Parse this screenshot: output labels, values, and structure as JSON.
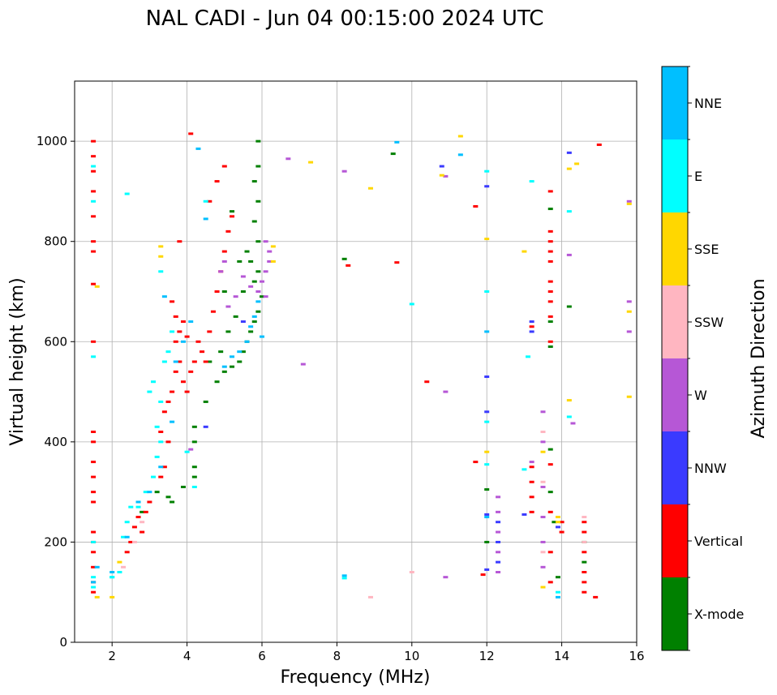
{
  "chart_data": {
    "type": "scatter",
    "title": "NAL CADI - Jun 04 00:15:00 2024 UTC",
    "xlabel": "Frequency (MHz)",
    "ylabel": "Virtual height (km)",
    "xlim": [
      1,
      16
    ],
    "ylim": [
      0,
      1120
    ],
    "xticks": [
      2,
      4,
      6,
      8,
      10,
      12,
      14,
      16
    ],
    "yticks": [
      0,
      200,
      400,
      600,
      800,
      1000
    ],
    "grid": true,
    "colorbar": {
      "title": "Azimuth Direction",
      "categories": [
        {
          "name": "X-mode",
          "color": "#008000"
        },
        {
          "name": "Vertical",
          "color": "#ff0000"
        },
        {
          "name": "NNW",
          "color": "#3a3aff"
        },
        {
          "name": "W",
          "color": "#b657d6"
        },
        {
          "name": "SSW",
          "color": "#ffb6c1"
        },
        {
          "name": "SSE",
          "color": "#ffd700"
        },
        {
          "name": "E",
          "color": "#00ffff"
        },
        {
          "name": "NNE",
          "color": "#00bfff"
        }
      ]
    },
    "series": [
      {
        "name": "X-mode",
        "points": [
          [
            2.8,
            260
          ],
          [
            3.2,
            300
          ],
          [
            3.5,
            290
          ],
          [
            3.6,
            280
          ],
          [
            3.9,
            310
          ],
          [
            4.2,
            330
          ],
          [
            4.2,
            350
          ],
          [
            4.2,
            400
          ],
          [
            4.2,
            430
          ],
          [
            4.5,
            480
          ],
          [
            4.8,
            520
          ],
          [
            5.0,
            540
          ],
          [
            5.2,
            550
          ],
          [
            5.4,
            560
          ],
          [
            5.5,
            580
          ],
          [
            5.6,
            600
          ],
          [
            5.7,
            620
          ],
          [
            5.8,
            640
          ],
          [
            5.9,
            660
          ],
          [
            6.0,
            690
          ],
          [
            5.8,
            720
          ],
          [
            5.9,
            740
          ],
          [
            5.7,
            760
          ],
          [
            5.6,
            780
          ],
          [
            5.9,
            800
          ],
          [
            5.8,
            840
          ],
          [
            5.9,
            880
          ],
          [
            5.8,
            920
          ],
          [
            5.9,
            950
          ],
          [
            5.9,
            1000
          ],
          [
            5.2,
            860
          ],
          [
            5.0,
            700
          ],
          [
            5.3,
            650
          ],
          [
            5.1,
            620
          ],
          [
            5.5,
            700
          ],
          [
            5.4,
            760
          ],
          [
            4.9,
            580
          ],
          [
            4.6,
            560
          ],
          [
            12.0,
            200
          ],
          [
            12.0,
            305
          ],
          [
            13.7,
            300
          ],
          [
            13.7,
            385
          ],
          [
            13.7,
            590
          ],
          [
            13.7,
            640
          ],
          [
            13.7,
            865
          ],
          [
            14.2,
            670
          ],
          [
            14.6,
            160
          ],
          [
            14.6,
            200
          ],
          [
            9.5,
            975
          ],
          [
            8.2,
            765
          ],
          [
            13.9,
            130
          ],
          [
            13.8,
            240
          ]
        ]
      },
      {
        "name": "Vertical",
        "points": [
          [
            1.5,
            100
          ],
          [
            1.5,
            120
          ],
          [
            1.5,
            150
          ],
          [
            1.5,
            180
          ],
          [
            1.5,
            200
          ],
          [
            1.5,
            220
          ],
          [
            1.5,
            280
          ],
          [
            1.5,
            300
          ],
          [
            1.5,
            330
          ],
          [
            1.5,
            360
          ],
          [
            1.5,
            400
          ],
          [
            1.5,
            420
          ],
          [
            1.5,
            600
          ],
          [
            1.5,
            715
          ],
          [
            1.5,
            780
          ],
          [
            1.5,
            800
          ],
          [
            1.5,
            850
          ],
          [
            1.5,
            900
          ],
          [
            1.5,
            940
          ],
          [
            1.5,
            970
          ],
          [
            1.5,
            1000
          ],
          [
            2.4,
            180
          ],
          [
            2.5,
            200
          ],
          [
            2.6,
            230
          ],
          [
            2.7,
            250
          ],
          [
            2.8,
            220
          ],
          [
            2.9,
            260
          ],
          [
            3.0,
            280
          ],
          [
            3.3,
            330
          ],
          [
            3.4,
            350
          ],
          [
            3.5,
            400
          ],
          [
            3.3,
            420
          ],
          [
            3.4,
            460
          ],
          [
            3.5,
            480
          ],
          [
            3.6,
            500
          ],
          [
            3.7,
            540
          ],
          [
            3.8,
            560
          ],
          [
            3.9,
            520
          ],
          [
            4.0,
            500
          ],
          [
            4.1,
            540
          ],
          [
            4.2,
            560
          ],
          [
            3.7,
            600
          ],
          [
            3.8,
            620
          ],
          [
            3.9,
            640
          ],
          [
            4.0,
            610
          ],
          [
            3.6,
            680
          ],
          [
            3.7,
            650
          ],
          [
            4.3,
            600
          ],
          [
            4.4,
            580
          ],
          [
            4.5,
            560
          ],
          [
            4.6,
            620
          ],
          [
            4.7,
            660
          ],
          [
            4.8,
            700
          ],
          [
            4.9,
            740
          ],
          [
            5.0,
            780
          ],
          [
            5.1,
            820
          ],
          [
            5.2,
            850
          ],
          [
            4.6,
            880
          ],
          [
            4.8,
            920
          ],
          [
            5.0,
            950
          ],
          [
            3.8,
            800
          ],
          [
            4.1,
            1015
          ],
          [
            10.4,
            520
          ],
          [
            11.9,
            135
          ],
          [
            11.7,
            360
          ],
          [
            11.7,
            870
          ],
          [
            13.2,
            260
          ],
          [
            13.2,
            290
          ],
          [
            13.2,
            320
          ],
          [
            13.2,
            350
          ],
          [
            13.2,
            630
          ],
          [
            13.7,
            120
          ],
          [
            13.7,
            180
          ],
          [
            13.7,
            260
          ],
          [
            13.7,
            355
          ],
          [
            13.7,
            600
          ],
          [
            13.7,
            650
          ],
          [
            13.7,
            680
          ],
          [
            13.7,
            700
          ],
          [
            13.7,
            720
          ],
          [
            13.7,
            760
          ],
          [
            13.7,
            780
          ],
          [
            13.7,
            800
          ],
          [
            13.7,
            820
          ],
          [
            13.7,
            900
          ],
          [
            14.0,
            220
          ],
          [
            14.0,
            240
          ],
          [
            14.6,
            100
          ],
          [
            14.6,
            120
          ],
          [
            14.6,
            140
          ],
          [
            14.6,
            180
          ],
          [
            14.6,
            220
          ],
          [
            14.6,
            240
          ],
          [
            14.9,
            90
          ],
          [
            15.0,
            993
          ],
          [
            9.6,
            758
          ],
          [
            8.3,
            752
          ]
        ]
      },
      {
        "name": "NNW",
        "points": [
          [
            12.0,
            145
          ],
          [
            12.0,
            255
          ],
          [
            12.0,
            460
          ],
          [
            12.0,
            530
          ],
          [
            12.0,
            910
          ],
          [
            12.3,
            160
          ],
          [
            12.3,
            200
          ],
          [
            12.3,
            240
          ],
          [
            13.2,
            620
          ],
          [
            13.2,
            640
          ],
          [
            14.2,
            977
          ],
          [
            13.9,
            230
          ],
          [
            13.0,
            255
          ],
          [
            4.5,
            430
          ],
          [
            5.5,
            640
          ],
          [
            10.8,
            950
          ]
        ]
      },
      {
        "name": "W",
        "points": [
          [
            12.3,
            140
          ],
          [
            12.3,
            180
          ],
          [
            12.3,
            220
          ],
          [
            12.3,
            260
          ],
          [
            12.3,
            290
          ],
          [
            13.2,
            360
          ],
          [
            13.5,
            150
          ],
          [
            13.5,
            200
          ],
          [
            13.5,
            250
          ],
          [
            13.5,
            310
          ],
          [
            13.5,
            400
          ],
          [
            13.5,
            460
          ],
          [
            14.3,
            437
          ],
          [
            14.2,
            773
          ],
          [
            15.8,
            620
          ],
          [
            15.8,
            680
          ],
          [
            15.8,
            880
          ],
          [
            10.9,
            130
          ],
          [
            10.9,
            500
          ],
          [
            10.9,
            930
          ],
          [
            8.2,
            940
          ],
          [
            6.7,
            965
          ],
          [
            7.1,
            555
          ],
          [
            5.9,
            700
          ],
          [
            6.0,
            720
          ],
          [
            6.1,
            740
          ],
          [
            6.2,
            760
          ],
          [
            6.2,
            780
          ],
          [
            6.1,
            800
          ],
          [
            5.7,
            710
          ],
          [
            5.5,
            730
          ],
          [
            5.3,
            690
          ],
          [
            5.1,
            670
          ],
          [
            4.1,
            385
          ],
          [
            4.9,
            740
          ],
          [
            5.0,
            760
          ],
          [
            6.1,
            690
          ]
        ]
      },
      {
        "name": "SSW",
        "points": [
          [
            2.3,
            150
          ],
          [
            2.6,
            200
          ],
          [
            2.8,
            240
          ],
          [
            13.5,
            180
          ],
          [
            13.5,
            320
          ],
          [
            13.5,
            420
          ],
          [
            14.6,
            200
          ],
          [
            14.6,
            250
          ],
          [
            10.0,
            140
          ],
          [
            8.9,
            90
          ]
        ]
      },
      {
        "name": "SSE",
        "points": [
          [
            1.6,
            90
          ],
          [
            1.6,
            710
          ],
          [
            2.0,
            90
          ],
          [
            2.2,
            160
          ],
          [
            3.3,
            770
          ],
          [
            3.3,
            790
          ],
          [
            6.3,
            760
          ],
          [
            6.3,
            790
          ],
          [
            7.3,
            958
          ],
          [
            8.9,
            906
          ],
          [
            10.8,
            932
          ],
          [
            11.3,
            1010
          ],
          [
            12.0,
            380
          ],
          [
            12.0,
            805
          ],
          [
            13.0,
            780
          ],
          [
            13.5,
            110
          ],
          [
            13.5,
            380
          ],
          [
            13.9,
            240
          ],
          [
            13.9,
            250
          ],
          [
            14.2,
            483
          ],
          [
            14.2,
            945
          ],
          [
            14.4,
            955
          ],
          [
            15.8,
            490
          ],
          [
            15.8,
            660
          ],
          [
            15.8,
            875
          ]
        ]
      },
      {
        "name": "E",
        "points": [
          [
            1.5,
            110
          ],
          [
            1.5,
            130
          ],
          [
            1.5,
            200
          ],
          [
            1.5,
            570
          ],
          [
            1.5,
            880
          ],
          [
            1.5,
            950
          ],
          [
            2.0,
            130
          ],
          [
            2.2,
            140
          ],
          [
            2.3,
            210
          ],
          [
            2.4,
            240
          ],
          [
            2.5,
            270
          ],
          [
            2.7,
            270
          ],
          [
            2.9,
            300
          ],
          [
            3.1,
            330
          ],
          [
            3.2,
            370
          ],
          [
            3.3,
            400
          ],
          [
            3.2,
            430
          ],
          [
            3.3,
            480
          ],
          [
            3.1,
            520
          ],
          [
            3.0,
            500
          ],
          [
            3.4,
            560
          ],
          [
            3.5,
            580
          ],
          [
            3.6,
            620
          ],
          [
            3.3,
            740
          ],
          [
            2.4,
            895
          ],
          [
            4.0,
            380
          ],
          [
            4.2,
            310
          ],
          [
            4.5,
            880
          ],
          [
            12.0,
            440
          ],
          [
            12.0,
            700
          ],
          [
            12.0,
            940
          ],
          [
            12.0,
            355
          ],
          [
            13.0,
            345
          ],
          [
            13.1,
            570
          ],
          [
            13.2,
            920
          ],
          [
            13.9,
            100
          ],
          [
            14.2,
            860
          ],
          [
            14.2,
            450
          ],
          [
            10.0,
            675
          ],
          [
            8.2,
            128
          ],
          [
            2.0,
            130
          ]
        ]
      },
      {
        "name": "NNE",
        "points": [
          [
            1.5,
            120
          ],
          [
            1.6,
            150
          ],
          [
            2.0,
            140
          ],
          [
            2.4,
            210
          ],
          [
            2.7,
            280
          ],
          [
            3.0,
            300
          ],
          [
            3.3,
            350
          ],
          [
            3.6,
            440
          ],
          [
            3.7,
            560
          ],
          [
            3.9,
            600
          ],
          [
            4.1,
            640
          ],
          [
            4.3,
            985
          ],
          [
            5.0,
            550
          ],
          [
            5.2,
            570
          ],
          [
            5.4,
            580
          ],
          [
            5.6,
            600
          ],
          [
            5.7,
            630
          ],
          [
            5.8,
            650
          ],
          [
            5.9,
            680
          ],
          [
            6.0,
            610
          ],
          [
            9.6,
            998
          ],
          [
            11.3,
            973
          ],
          [
            12.0,
            620
          ],
          [
            12.0,
            250
          ],
          [
            13.9,
            90
          ],
          [
            8.2,
            133
          ],
          [
            3.4,
            690
          ],
          [
            4.5,
            845
          ]
        ]
      }
    ]
  }
}
